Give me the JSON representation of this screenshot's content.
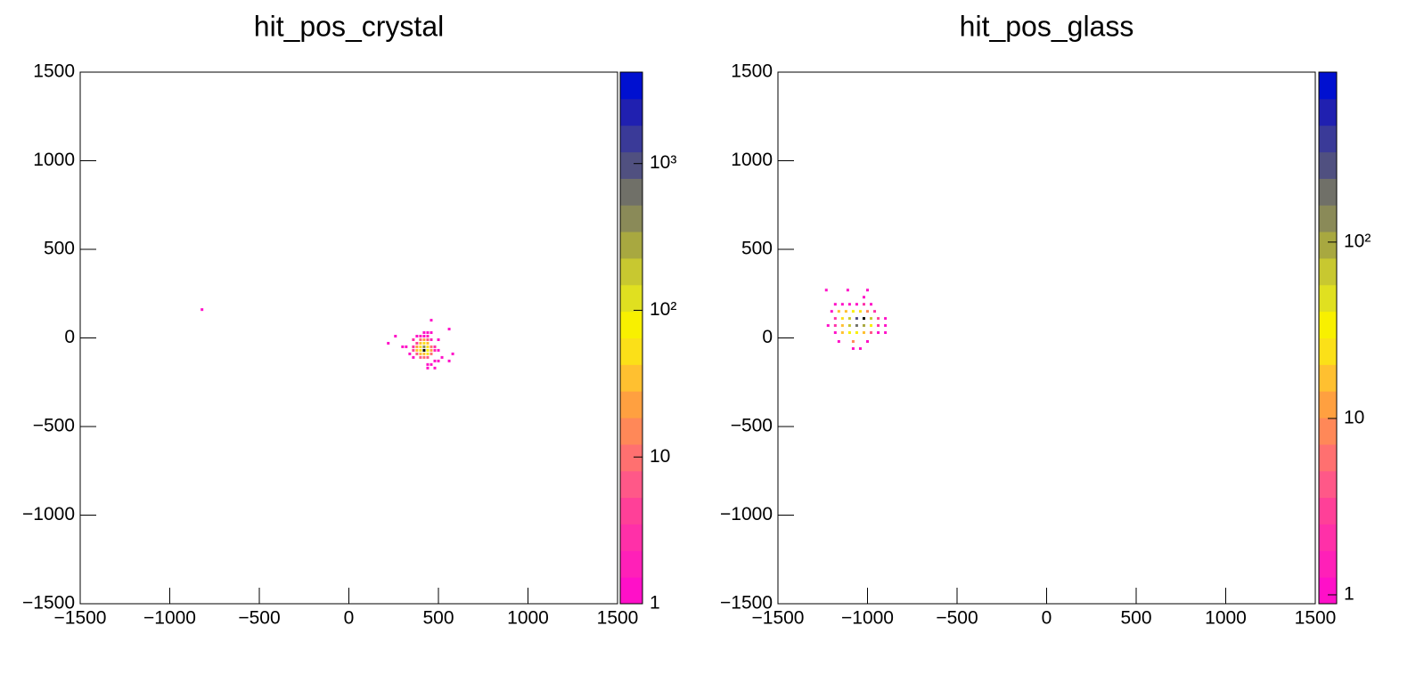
{
  "chart_data": [
    {
      "type": "heatmap",
      "title": "hit_pos_crystal",
      "x": [
        -820,
        460,
        560,
        220,
        260,
        300,
        320,
        340,
        360,
        500,
        500,
        520,
        500,
        440,
        460,
        480,
        580,
        560,
        440,
        480,
        360,
        380,
        380,
        400,
        400,
        420,
        440,
        460,
        460,
        440,
        360,
        360,
        480,
        480,
        460,
        440,
        400,
        380,
        420,
        420,
        440,
        460,
        380,
        380,
        400,
        400,
        400,
        400,
        420,
        420,
        420,
        420,
        440,
        440,
        440,
        440,
        460,
        420
      ],
      "y": [
        160,
        100,
        50,
        -30,
        10,
        -50,
        -50,
        -90,
        -110,
        -10,
        -70,
        -110,
        -130,
        -150,
        -150,
        -130,
        -90,
        -130,
        -170,
        -170,
        -50,
        -30,
        -90,
        -10,
        -110,
        -110,
        -110,
        -90,
        -50,
        -10,
        -10,
        -70,
        -50,
        -70,
        -10,
        10,
        10,
        10,
        10,
        30,
        30,
        30,
        -50,
        -70,
        -30,
        -50,
        -70,
        -90,
        -30,
        -50,
        -70,
        -90,
        -30,
        -50,
        -70,
        -90,
        -70,
        -10
      ],
      "z": [
        1,
        1,
        1,
        1,
        1,
        1,
        1,
        1,
        1,
        1,
        1,
        1,
        1,
        1,
        1,
        1,
        1,
        1,
        1,
        1,
        3,
        5,
        8,
        10,
        6,
        12,
        8,
        10,
        12,
        6,
        3,
        4,
        3,
        2,
        2,
        2,
        2,
        1,
        1,
        1,
        1,
        1,
        25,
        30,
        40,
        60,
        50,
        35,
        50,
        500,
        4000,
        40,
        30,
        60,
        70,
        45,
        20,
        20
      ],
      "xlim": [
        -1500,
        1500
      ],
      "ylim": [
        -1500,
        1500
      ],
      "xticks": [
        {
          "value": -1500,
          "label": "−1500"
        },
        {
          "value": -1000,
          "label": "−1000"
        },
        {
          "value": -500,
          "label": "−500"
        },
        0,
        500,
        1000,
        1500
      ],
      "yticks": [
        {
          "value": -1500,
          "label": "−1500"
        },
        {
          "value": -1000,
          "label": "−1000"
        },
        {
          "value": -500,
          "label": "−500"
        },
        0,
        500,
        1000,
        1500
      ],
      "zlog": true,
      "zlim": [
        1,
        4200
      ],
      "zticks": [
        1,
        10,
        {
          "value": 100,
          "label": "10²"
        },
        {
          "value": 1000,
          "label": "10³"
        }
      ],
      "palette": [
        "#ff10c8",
        "#ff20b8",
        "#ff30a8",
        "#ff4098",
        "#ff5888",
        "#ff7070",
        "#ff8858",
        "#ffa040",
        "#ffc030",
        "#fbe018",
        "#f8f000",
        "#e0e020",
        "#c8c830",
        "#a8a840",
        "#8a8a58",
        "#707068",
        "#505080",
        "#3a3a98",
        "#2020b0",
        "#0010d0"
      ]
    },
    {
      "type": "heatmap",
      "title": "hit_pos_glass",
      "x": [
        -1230,
        -1110,
        -1000,
        -1180,
        -1140,
        -1100,
        -1060,
        -1020,
        -1020,
        -980,
        -1200,
        -1160,
        -1120,
        -1080,
        -1040,
        -1000,
        -960,
        -1180,
        -1140,
        -1100,
        -1060,
        -1020,
        -980,
        -940,
        -900,
        -1220,
        -1180,
        -1140,
        -1100,
        -1060,
        -1020,
        -980,
        -940,
        -900,
        -1180,
        -1140,
        -1100,
        -1060,
        -1020,
        -980,
        -940,
        -900,
        -1160,
        -1080,
        -1000,
        -1080,
        -1040
      ],
      "y": [
        270,
        270,
        270,
        190,
        190,
        190,
        190,
        230,
        190,
        190,
        150,
        150,
        150,
        150,
        150,
        150,
        150,
        110,
        110,
        110,
        110,
        110,
        110,
        110,
        110,
        70,
        70,
        70,
        70,
        70,
        70,
        70,
        70,
        70,
        30,
        30,
        30,
        30,
        30,
        30,
        30,
        30,
        -20,
        -20,
        -20,
        -60,
        -60
      ],
      "z": [
        1,
        1,
        1,
        1,
        1,
        1,
        1,
        1,
        2,
        1,
        1,
        15,
        20,
        30,
        25,
        10,
        2,
        2,
        25,
        60,
        300,
        800,
        80,
        3,
        1,
        1,
        2,
        20,
        60,
        200,
        100,
        40,
        2,
        1,
        1,
        15,
        30,
        40,
        20,
        5,
        1,
        1,
        1,
        8,
        1,
        1,
        1
      ],
      "xlim": [
        -1500,
        1500
      ],
      "ylim": [
        -1500,
        1500
      ],
      "xticks": [
        {
          "value": -1500,
          "label": "−1500"
        },
        {
          "value": -1000,
          "label": "−1000"
        },
        {
          "value": -500,
          "label": "−500"
        },
        0,
        500,
        1000,
        1500
      ],
      "yticks": [
        {
          "value": -1500,
          "label": "−1500"
        },
        {
          "value": -1000,
          "label": "−1000"
        },
        {
          "value": -500,
          "label": "−500"
        },
        0,
        500,
        1000,
        1500
      ],
      "zlog": true,
      "zlim": [
        0.89,
        920
      ],
      "zticks": [
        1,
        10,
        {
          "value": 100,
          "label": "10²"
        }
      ],
      "palette": [
        "#ff10c8",
        "#ff20b8",
        "#ff30a8",
        "#ff4098",
        "#ff5888",
        "#ff7070",
        "#ff8858",
        "#ffa040",
        "#ffc030",
        "#fbe018",
        "#f8f000",
        "#e0e020",
        "#c8c830",
        "#a8a840",
        "#8a8a58",
        "#707068",
        "#505080",
        "#3a3a98",
        "#2020b0",
        "#0010d0"
      ]
    }
  ]
}
